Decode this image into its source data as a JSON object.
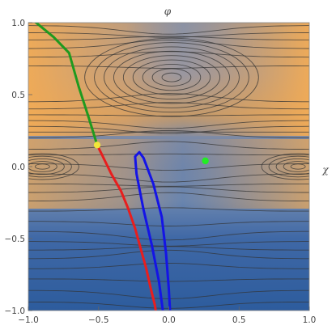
{
  "chart_data": {
    "type": "contour",
    "title": "",
    "xlabel": "χ",
    "ylabel": "φ",
    "xlim": [
      -1.0,
      1.0
    ],
    "ylim": [
      -1.0,
      1.0
    ],
    "x_ticks": [
      -1.0,
      -0.5,
      0.0,
      0.5,
      1.0
    ],
    "x_tick_labels": [
      "−1.0",
      "−0.5",
      "0.0",
      "0.5",
      "1.0"
    ],
    "y_ticks": [
      -1.0,
      -0.5,
      0.0,
      0.5,
      1.0
    ],
    "y_tick_labels": [
      "−1.0",
      "−0.5",
      "0.0",
      "0.5",
      "1.0"
    ],
    "colors": {
      "low": "#2f5f9e",
      "mid": "#8a93a6",
      "high": "#e8a24c",
      "contour": "#333333",
      "green_curve": "#1f9a1f",
      "red_curve": "#e81e1e",
      "blue_curve": "#1414e6",
      "green_point": "#22ee22",
      "yellow_point": "#f2e63a"
    },
    "series": [
      {
        "type": "line",
        "color": "green",
        "points": [
          [
            -0.97,
            1.02
          ],
          [
            -0.82,
            0.9
          ],
          [
            -0.71,
            0.79
          ],
          [
            -0.64,
            0.55
          ],
          [
            -0.57,
            0.34
          ],
          [
            -0.51,
            0.15
          ]
        ]
      },
      {
        "type": "line",
        "color": "red",
        "points": [
          [
            -0.51,
            0.15
          ],
          [
            -0.47,
            0.07
          ],
          [
            -0.41,
            -0.05
          ],
          [
            -0.34,
            -0.17
          ],
          [
            -0.29,
            -0.29
          ],
          [
            -0.24,
            -0.43
          ],
          [
            -0.2,
            -0.57
          ],
          [
            -0.16,
            -0.71
          ],
          [
            -0.13,
            -0.84
          ],
          [
            -0.1,
            -0.96
          ],
          [
            -0.09,
            -1.02
          ]
        ]
      },
      {
        "type": "line",
        "color": "blue",
        "points": [
          [
            -0.21,
            0.1
          ],
          [
            -0.18,
            0.06
          ],
          [
            -0.11,
            -0.12
          ],
          [
            -0.05,
            -0.35
          ],
          [
            -0.02,
            -0.6
          ],
          [
            0.0,
            -0.85
          ],
          [
            0.01,
            -1.02
          ],
          [
            -0.04,
            -1.02
          ],
          [
            -0.07,
            -0.8
          ],
          [
            -0.12,
            -0.55
          ],
          [
            -0.18,
            -0.3
          ],
          [
            -0.23,
            -0.05
          ],
          [
            -0.24,
            0.07
          ],
          [
            -0.21,
            0.1
          ]
        ]
      }
    ],
    "points": [
      {
        "x": 0.26,
        "y": 0.04,
        "color": "green"
      },
      {
        "x": -0.51,
        "y": 0.15,
        "color": "yellow"
      }
    ]
  }
}
